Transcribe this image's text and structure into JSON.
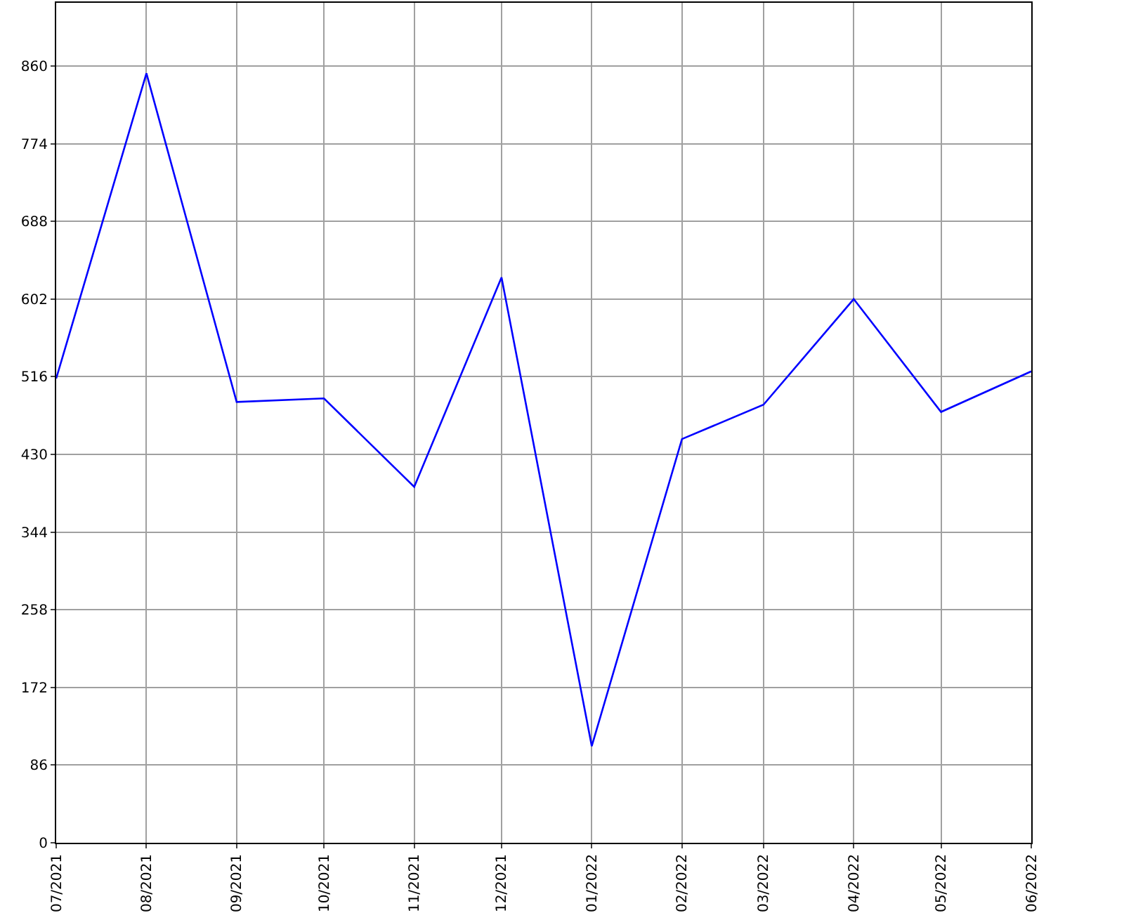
{
  "chart_data": {
    "type": "line",
    "x": [
      "2021-07",
      "2021-08",
      "2021-09",
      "2021-10",
      "2021-11",
      "2021-12",
      "2022-01",
      "2022-02",
      "2022-03",
      "2022-04",
      "2022-05",
      "2022-06"
    ],
    "series": [
      {
        "color": "#0000ff",
        "values": [
          514,
          852,
          488,
          492,
          394,
          626,
          107,
          447,
          485,
          602,
          477,
          522
        ]
      }
    ],
    "xlim": [
      "2021-07",
      "2022-06"
    ],
    "xticks": [
      {
        "value": "2021-07",
        "label": "07/2021"
      },
      {
        "value": "2021-08",
        "label": "08/2021"
      },
      {
        "value": "2021-09",
        "label": "09/2021"
      },
      {
        "value": "2021-10",
        "label": "10/2021"
      },
      {
        "value": "2021-11",
        "label": "11/2021"
      },
      {
        "value": "2021-12",
        "label": "12/2021"
      },
      {
        "value": "2022-01",
        "label": "01/2022"
      },
      {
        "value": "2022-02",
        "label": "02/2022"
      },
      {
        "value": "2022-03",
        "label": "03/2022"
      },
      {
        "value": "2022-04",
        "label": "04/2022"
      },
      {
        "value": "2022-05",
        "label": "05/2022"
      },
      {
        "value": "2022-06",
        "label": "06/2022"
      }
    ],
    "ylim": [
      0,
      930
    ],
    "yticks": [
      0,
      86,
      172,
      258,
      344,
      430,
      516,
      602,
      688,
      774,
      860
    ],
    "grid": true,
    "line_style": "solid"
  }
}
